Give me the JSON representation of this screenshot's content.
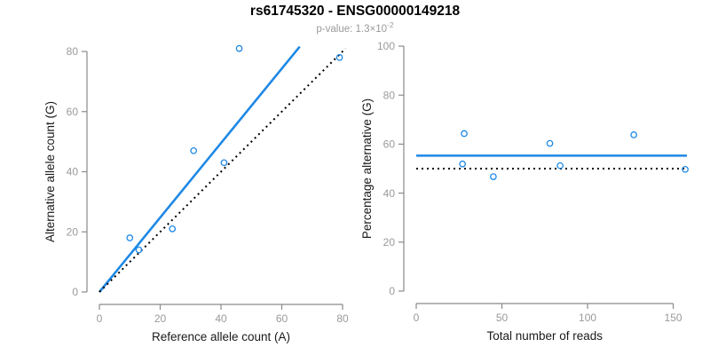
{
  "header": {
    "title": "rs61745320 - ENSG00000149218",
    "subtitle_prefix": "p-value: ",
    "subtitle_mantissa": "1.3",
    "subtitle_times_base": "×10",
    "subtitle_exponent": "-2"
  },
  "colors": {
    "accent_blue": "#1E88E5",
    "dotted_black": "#000000",
    "axis_gray": "#8a8a8a",
    "tick_label_gray": "#9a9a9a",
    "text_dark": "#1a1a1a",
    "background": "#ffffff"
  },
  "chart_data": [
    {
      "type": "scatter",
      "title": "",
      "xlabel": "Reference allele count (A)",
      "ylabel": "Alternative allele count (G)",
      "xlim": [
        0,
        80
      ],
      "ylim": [
        0,
        80
      ],
      "xticks": [
        0,
        20,
        40,
        60,
        80
      ],
      "yticks": [
        0,
        20,
        40,
        60,
        80
      ],
      "grid": false,
      "legend": "none",
      "marker": "open-circle",
      "points": [
        [
          10,
          18
        ],
        [
          13,
          14
        ],
        [
          24,
          21
        ],
        [
          31,
          47
        ],
        [
          41,
          43
        ],
        [
          46,
          81
        ],
        [
          79,
          78
        ]
      ],
      "lines": [
        {
          "name": "fitted-ratio",
          "style": "solid",
          "color": "#1E88E5",
          "width": 2.6,
          "from": [
            0,
            0
          ],
          "to": [
            65.9,
            81.6
          ]
        },
        {
          "name": "identity",
          "style": "dotted",
          "color": "#000000",
          "width": 2,
          "from": [
            0,
            0
          ],
          "to": [
            81,
            81
          ]
        }
      ]
    },
    {
      "type": "scatter",
      "title": "",
      "xlabel": "Total number of reads",
      "ylabel": "Percentage alternative (G)",
      "xlim": [
        0,
        158
      ],
      "ylim": [
        0,
        100
      ],
      "xticks": [
        0,
        50,
        100,
        150
      ],
      "yticks": [
        0,
        20,
        40,
        60,
        80,
        100
      ],
      "grid": false,
      "legend": "none",
      "marker": "open-circle",
      "points": [
        [
          28,
          64.3
        ],
        [
          27,
          51.9
        ],
        [
          45,
          46.7
        ],
        [
          78,
          60.3
        ],
        [
          84,
          51.2
        ],
        [
          127,
          63.8
        ],
        [
          157,
          49.7
        ]
      ],
      "lines": [
        {
          "name": "mean-percentage",
          "style": "solid",
          "color": "#1E88E5",
          "width": 2.6,
          "from": [
            0,
            55.3
          ],
          "to": [
            158,
            55.3
          ]
        },
        {
          "name": "null-50-percent",
          "style": "dotted",
          "color": "#000000",
          "width": 2,
          "from": [
            0,
            50
          ],
          "to": [
            158,
            50
          ]
        }
      ]
    }
  ]
}
